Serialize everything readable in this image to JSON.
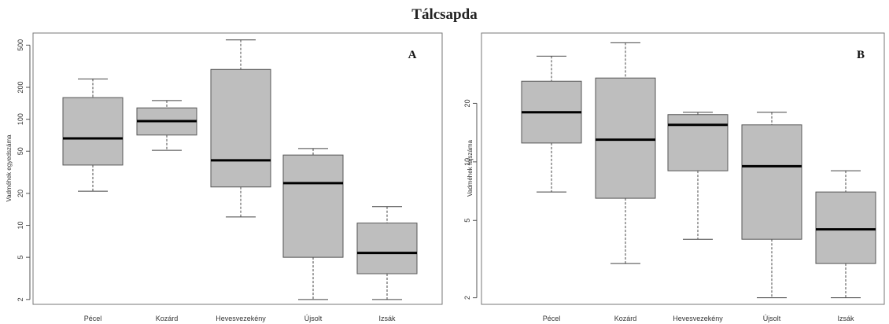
{
  "title": "Tálcsapda",
  "chart_data": [
    {
      "type": "boxplot",
      "panel_label": "A",
      "ylabel": "Vadméhek egyedszáma",
      "yscale": "log",
      "ylim": [
        1.8,
        650
      ],
      "yticks": [
        2,
        5,
        10,
        20,
        50,
        100,
        200,
        500
      ],
      "categories": [
        "Pécel",
        "Kozárd",
        "Hevesvezekény",
        "Újsolt",
        "Izsák"
      ],
      "boxes": [
        {
          "min": 21,
          "q1": 37,
          "median": 66,
          "q3": 160,
          "max": 240
        },
        {
          "min": 51,
          "q1": 71,
          "median": 96,
          "q3": 128,
          "max": 150
        },
        {
          "min": 12,
          "q1": 23,
          "median": 41,
          "q3": 295,
          "max": 560
        },
        {
          "min": 2,
          "q1": 5,
          "median": 25,
          "q3": 46,
          "max": 53
        },
        {
          "min": 2,
          "q1": 3.5,
          "median": 5.5,
          "q3": 10.5,
          "max": 15
        }
      ]
    },
    {
      "type": "boxplot",
      "panel_label": "B",
      "ylabel": "Vadméhek fajszáma",
      "yscale": "log",
      "ylim": [
        1.85,
        46
      ],
      "yticks": [
        2,
        5,
        10,
        20
      ],
      "categories": [
        "Pécel",
        "Kozárd",
        "Hevesvezekény",
        "Újsolt",
        "Izsák"
      ],
      "boxes": [
        {
          "min": 7,
          "q1": 12.5,
          "median": 18,
          "q3": 26,
          "max": 35
        },
        {
          "min": 3,
          "q1": 6.5,
          "median": 13,
          "q3": 27,
          "max": 41
        },
        {
          "min": 4,
          "q1": 9,
          "median": 15.5,
          "q3": 17.5,
          "max": 18
        },
        {
          "min": 2,
          "q1": 4,
          "median": 9.5,
          "q3": 15.5,
          "max": 18
        },
        {
          "min": 2,
          "q1": 3,
          "median": 4.5,
          "q3": 7,
          "max": 9
        }
      ]
    }
  ]
}
